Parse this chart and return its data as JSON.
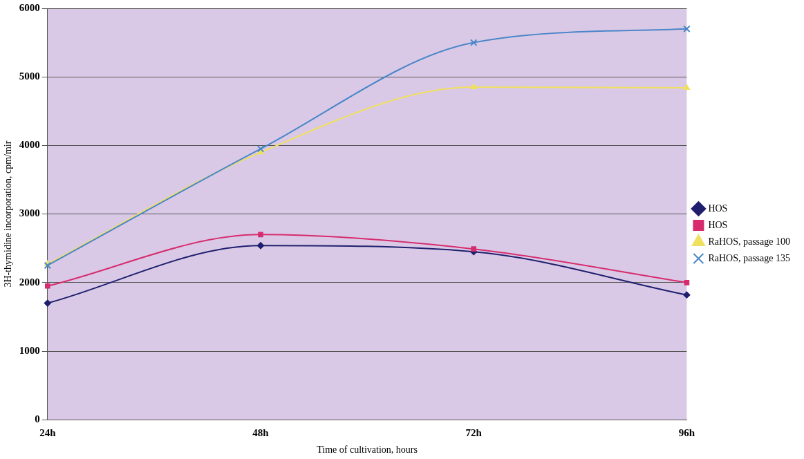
{
  "chart_data": {
    "type": "line",
    "xlabel": "Time of cultivation, hours",
    "ylabel": "3H-thymidine incorporation, cpm/mir",
    "categories": [
      "24h",
      "48h",
      "72h",
      "96h"
    ],
    "series": [
      {
        "name": "HOS",
        "color": "#1f1f6e",
        "marker": "diamond",
        "values": [
          1700,
          2540,
          2450,
          1820
        ]
      },
      {
        "name": "HOS",
        "color": "#d62c6e",
        "marker": "square",
        "values": [
          1950,
          2700,
          2490,
          2000
        ]
      },
      {
        "name": "RaHOS, passage 100",
        "color": "#f0e060",
        "marker": "triangle",
        "values": [
          2270,
          3900,
          4850,
          4840
        ]
      },
      {
        "name": "RaHOS, passage 135",
        "color": "#4a86c8",
        "marker": "cross",
        "values": [
          2250,
          3950,
          5500,
          5700
        ]
      }
    ],
    "ylim": [
      0,
      6000
    ],
    "yticks": [
      0,
      1000,
      2000,
      3000,
      4000,
      5000,
      6000
    ],
    "grid": "y",
    "legend": "right",
    "line_style": "solid"
  }
}
